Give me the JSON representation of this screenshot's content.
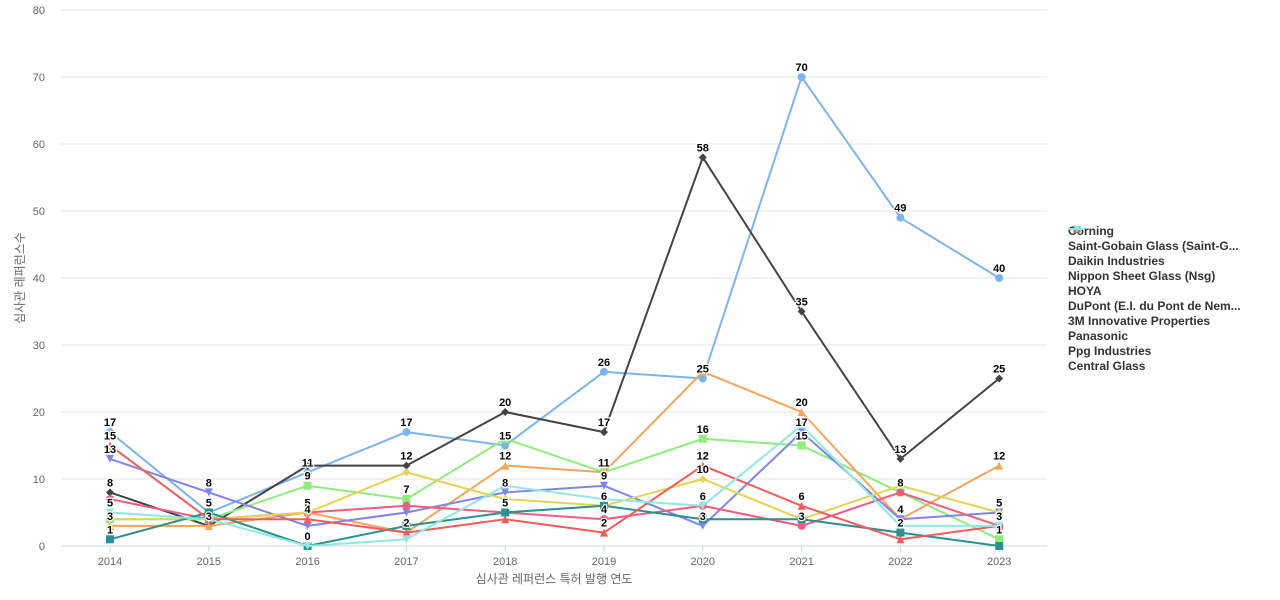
{
  "chart_data": {
    "type": "line",
    "title": "",
    "xlabel": "심사관 레퍼런스 특허 발행 연도",
    "ylabel": "심사관 레퍼런스수",
    "x": [
      2014,
      2015,
      2016,
      2017,
      2018,
      2019,
      2020,
      2021,
      2022,
      2023
    ],
    "ylim": [
      0,
      80
    ],
    "yticks": [
      0,
      10,
      20,
      30,
      40,
      50,
      60,
      70,
      80
    ],
    "grid": true,
    "legend_position": "right",
    "series": [
      {
        "name": "Corning",
        "color": "#7cb5ec",
        "marker": "circle",
        "values": [
          17,
          5,
          11,
          17,
          15,
          26,
          25,
          70,
          49,
          40
        ],
        "labels": [
          "17",
          "5",
          "11",
          "17",
          "15",
          "26",
          "25",
          "70",
          "49",
          "40"
        ]
      },
      {
        "name": "Saint-Gobain Glass (Saint-G...",
        "color": "#434348",
        "marker": "diamond",
        "values": [
          8,
          3,
          12,
          12,
          20,
          17,
          58,
          35,
          13,
          25
        ],
        "labels": [
          "8",
          "3",
          "",
          "12",
          "20",
          "17",
          "58",
          "35",
          "13",
          "25"
        ]
      },
      {
        "name": "Daikin Industries",
        "color": "#90ed7d",
        "marker": "square",
        "values": [
          4,
          4,
          9,
          7,
          16,
          11,
          16,
          15,
          8,
          1
        ],
        "labels": [
          "",
          "",
          "9",
          "7",
          "",
          "11",
          "16",
          "15",
          "8",
          "1"
        ]
      },
      {
        "name": "Nippon Sheet Glass (Nsg)",
        "color": "#f7a35c",
        "marker": "triangle",
        "values": [
          3,
          3,
          5,
          2,
          12,
          11,
          26,
          20,
          4,
          12
        ],
        "labels": [
          "3",
          "",
          "",
          "",
          "12",
          "",
          "",
          "20",
          "",
          "12"
        ]
      },
      {
        "name": "HOYA",
        "color": "#8085e9",
        "marker": "triangle-down",
        "values": [
          13,
          8,
          3,
          5,
          8,
          9,
          3,
          17,
          4,
          5
        ],
        "labels": [
          "13",
          "8",
          "",
          "",
          "8",
          "9",
          "3",
          "17",
          "4",
          "5"
        ]
      },
      {
        "name": "DuPont (E.I. du Pont de Nem...",
        "color": "#f15c80",
        "marker": "circle",
        "values": [
          7,
          4,
          5,
          6,
          5,
          4,
          6,
          3,
          8,
          3
        ],
        "labels": [
          "",
          "",
          "5",
          "",
          "",
          "4",
          "",
          "3",
          "",
          "3"
        ]
      },
      {
        "name": "3M Innovative Properties",
        "color": "#e4d354",
        "marker": "diamond",
        "values": [
          4,
          4,
          5,
          11,
          7,
          6,
          10,
          4,
          9,
          5
        ],
        "labels": [
          "",
          "",
          "",
          "",
          "",
          "",
          "10",
          "",
          "",
          ""
        ]
      },
      {
        "name": "Panasonic",
        "color": "#2b908f",
        "marker": "square",
        "values": [
          1,
          5,
          0,
          3,
          5,
          6,
          4,
          4,
          2,
          0
        ],
        "labels": [
          "1",
          "",
          "0",
          "",
          "5",
          "6",
          "",
          "",
          "2",
          ""
        ]
      },
      {
        "name": "Ppg Industries",
        "color": "#f45b5b",
        "marker": "triangle",
        "values": [
          15,
          4,
          4,
          2,
          4,
          2,
          12,
          6,
          1,
          3
        ],
        "labels": [
          "15",
          "",
          "4",
          "2",
          "",
          "2",
          "12",
          "6",
          "",
          ""
        ]
      },
      {
        "name": "Central Glass",
        "color": "#91e8e1",
        "marker": "triangle-down",
        "values": [
          5,
          4,
          0,
          1,
          9,
          7,
          6,
          18,
          3,
          3
        ],
        "labels": [
          "5",
          "",
          "",
          "",
          "",
          "",
          "6",
          "",
          "",
          ""
        ]
      }
    ]
  }
}
